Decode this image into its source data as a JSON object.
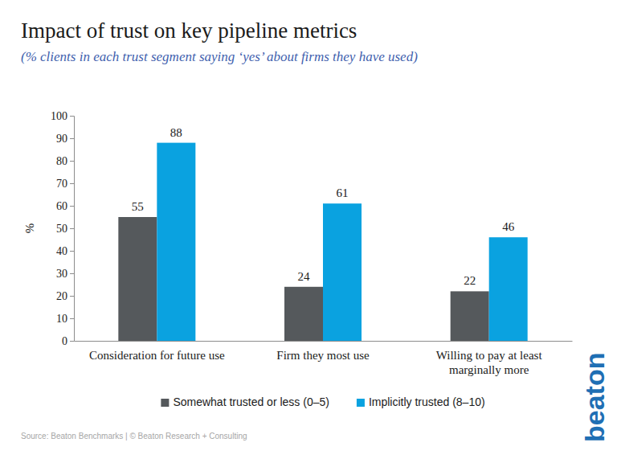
{
  "chart_data": {
    "type": "bar",
    "title": "Impact of trust on key pipeline metrics",
    "subtitle": "(% clients in each trust segment saying ‘yes’ about firms they have used)",
    "y_label": "%",
    "categories": [
      "Consideration for future use",
      "Firm they most use",
      "Willing to pay at least marginally more"
    ],
    "series": [
      {
        "name": "Somewhat trusted or less (0–5)",
        "color": "#55595c",
        "values": [
          55,
          24,
          22
        ]
      },
      {
        "name": "Implicitly trusted (8–10)",
        "color": "#0aa2e0",
        "values": [
          88,
          61,
          46
        ]
      }
    ],
    "ylim": [
      0,
      100
    ],
    "yticks": [
      0,
      10,
      20,
      30,
      40,
      50,
      60,
      70,
      80,
      90,
      100
    ],
    "grid": false,
    "legend": "bottom",
    "data_labels": true,
    "source": "Source: Beaton Benchmarks | © Beaton Research + Consulting",
    "logo": "beaton"
  }
}
